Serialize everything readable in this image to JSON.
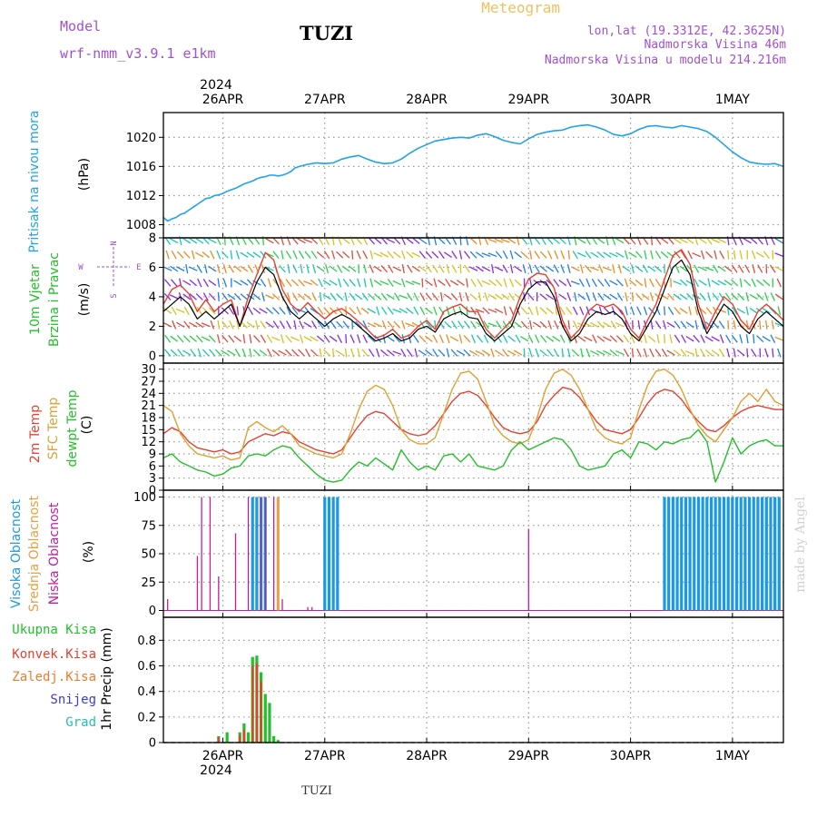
{
  "header": {
    "model_label": "Model",
    "model_name": "wrf-nmm_v3.9.1  e1km",
    "station": "TUZI",
    "chart_title": "Meteogram",
    "location_line": "lon,lat (19.3312E, 42.3625N)",
    "elevation_line": "Nadmorska Visina 46m",
    "model_elevation_line": "Nadmorska Visina u modelu 214.216m",
    "footer_station": "TUZI",
    "watermark": "made by Angel"
  },
  "colors": {
    "pressure": "#1fa3e8",
    "wind_black": "#000000",
    "wind_red": "#e8402f",
    "temp_2m": "#e8402f",
    "temp_sfc": "#e0a030",
    "temp_dew": "#22c02a",
    "cloud_high": "#1a9ae6",
    "cloud_mid": "#e8a040",
    "cloud_low": "#c01fa0",
    "precip_total": "#22c02a",
    "precip_conv": "#e8402f",
    "precip_frozen": "#f07a30",
    "precip_snow": "#3a3ae0",
    "precip_hail": "#26c0b0",
    "header_purple": "#a24fd0",
    "title_orange": "#f0c060"
  },
  "time_axis": {
    "year": "2024",
    "labels": [
      "26APR",
      "27APR",
      "28APR",
      "29APR",
      "30APR",
      "1MAY"
    ],
    "range_hours": [
      -14,
      132
    ]
  },
  "chart_data": [
    {
      "type": "line",
      "name": "pressure",
      "ylabel_lines": [
        "Pritisak na nivou mora",
        "(hPa)"
      ],
      "ylim": [
        1006.2,
        1023.4
      ],
      "yticks": [
        1008,
        1012,
        1016,
        1020
      ],
      "grid": true,
      "x": [
        -14,
        -13,
        -12,
        -11,
        -10,
        -9,
        -8,
        -7,
        -6,
        -5,
        -4,
        -3,
        -2,
        -1,
        0,
        1,
        2,
        3,
        4,
        5,
        6,
        7,
        8,
        9,
        10,
        11,
        12,
        13,
        14,
        15,
        16,
        17,
        18,
        20,
        22,
        24,
        26,
        28,
        30,
        32,
        34,
        36,
        38,
        40,
        42,
        44,
        46,
        48,
        50,
        52,
        54,
        56,
        58,
        60,
        62,
        64,
        66,
        68,
        70,
        72,
        74,
        76,
        78,
        80,
        82,
        84,
        86,
        88,
        90,
        92,
        94,
        96,
        98,
        100,
        102,
        104,
        106,
        108,
        110,
        112,
        114,
        116,
        118,
        120,
        122,
        124,
        126,
        128,
        130,
        132
      ],
      "y": [
        1009.0,
        1008.5,
        1008.8,
        1009.0,
        1009.4,
        1009.6,
        1010.0,
        1010.4,
        1010.8,
        1011.2,
        1011.6,
        1011.7,
        1012.0,
        1012.1,
        1012.3,
        1012.6,
        1012.8,
        1013.0,
        1013.3,
        1013.6,
        1013.8,
        1014.0,
        1014.3,
        1014.5,
        1014.6,
        1014.8,
        1014.8,
        1014.7,
        1014.8,
        1015.0,
        1015.3,
        1015.8,
        1016.0,
        1016.3,
        1016.5,
        1016.4,
        1016.5,
        1017.0,
        1017.3,
        1017.5,
        1017.0,
        1016.6,
        1016.4,
        1016.5,
        1017.0,
        1017.8,
        1018.5,
        1019.0,
        1019.5,
        1019.7,
        1019.9,
        1020.0,
        1019.9,
        1020.3,
        1020.5,
        1020.1,
        1019.6,
        1019.3,
        1019.1,
        1019.8,
        1020.4,
        1020.7,
        1020.9,
        1021.0,
        1021.4,
        1021.6,
        1021.7,
        1021.4,
        1021.0,
        1020.4,
        1020.2,
        1020.5,
        1021.1,
        1021.5,
        1021.6,
        1021.4,
        1021.3,
        1021.6,
        1021.4,
        1021.2,
        1020.8,
        1020.0,
        1019.0,
        1018.0,
        1017.2,
        1016.6,
        1016.4,
        1016.3,
        1016.4,
        1016.0
      ]
    },
    {
      "type": "line",
      "name": "wind",
      "ylabel_lines": [
        "10m Vjetar",
        "Brzina i Pravac",
        "(m/s)"
      ],
      "compass": {
        "north": "N",
        "south": "S",
        "west": "W",
        "east": "E"
      },
      "ylim": [
        -0.5,
        8
      ],
      "yticks": [
        0,
        2,
        4,
        6,
        8
      ],
      "grid": true,
      "x": [
        -14,
        -12,
        -10,
        -8,
        -6,
        -4,
        -2,
        0,
        2,
        4,
        6,
        8,
        10,
        12,
        14,
        16,
        18,
        20,
        22,
        24,
        26,
        28,
        30,
        32,
        34,
        36,
        38,
        40,
        42,
        44,
        46,
        48,
        50,
        52,
        54,
        56,
        58,
        60,
        62,
        64,
        66,
        68,
        70,
        72,
        74,
        76,
        78,
        80,
        82,
        84,
        86,
        88,
        90,
        92,
        94,
        96,
        98,
        100,
        102,
        104,
        106,
        108,
        110,
        112,
        114,
        116,
        118,
        120,
        122,
        124,
        126,
        128,
        130,
        132
      ],
      "y": [
        3.0,
        3.5,
        4.0,
        3.5,
        2.5,
        3.0,
        2.5,
        3.0,
        3.5,
        2.0,
        3.5,
        5.0,
        6.0,
        5.5,
        4.0,
        3.0,
        2.5,
        3.0,
        2.5,
        2.0,
        2.5,
        2.8,
        2.5,
        2.0,
        1.5,
        1.0,
        1.2,
        1.5,
        1.0,
        1.2,
        1.8,
        2.0,
        1.6,
        2.5,
        2.8,
        3.0,
        2.6,
        2.5,
        1.5,
        1.0,
        1.5,
        2.0,
        3.5,
        4.5,
        5.0,
        5.0,
        4.0,
        2.0,
        1.0,
        1.5,
        2.5,
        3.0,
        2.8,
        3.0,
        2.5,
        1.5,
        1.0,
        2.0,
        3.0,
        4.5,
        6.0,
        6.5,
        5.5,
        3.0,
        1.5,
        2.5,
        3.5,
        3.0,
        2.0,
        1.5,
        2.5,
        3.0,
        2.5,
        2.0
      ],
      "y_red": [
        3.5,
        4.5,
        4.8,
        4.2,
        3.0,
        3.8,
        3.0,
        3.5,
        3.8,
        2.0,
        4.0,
        5.5,
        7.0,
        6.5,
        4.5,
        3.5,
        3.0,
        3.6,
        3.0,
        2.5,
        3.0,
        3.2,
        2.8,
        2.3,
        1.8,
        1.2,
        1.4,
        1.8,
        1.2,
        1.4,
        2.0,
        2.4,
        1.8,
        3.0,
        3.3,
        3.5,
        3.0,
        3.0,
        1.8,
        1.2,
        1.8,
        2.4,
        4.0,
        5.2,
        5.6,
        5.5,
        4.6,
        2.4,
        1.2,
        1.8,
        3.0,
        3.5,
        3.3,
        3.5,
        3.0,
        1.8,
        1.2,
        2.4,
        3.5,
        5.2,
        6.8,
        7.2,
        6.2,
        3.5,
        1.8,
        3.0,
        4.0,
        3.5,
        2.4,
        1.8,
        3.0,
        3.5,
        3.0,
        2.4
      ]
    },
    {
      "type": "line",
      "name": "temperature",
      "ylabel_lines": [
        "2m Temp",
        "SFC Temp",
        "dewpt Temp",
        "(C)"
      ],
      "ylim": [
        0,
        31.5
      ],
      "yticks": [
        0,
        3,
        6,
        9,
        12,
        15,
        18,
        21,
        24,
        27,
        30
      ],
      "grid": true,
      "x": [
        -14,
        -12,
        -10,
        -8,
        -6,
        -4,
        -2,
        0,
        2,
        4,
        6,
        8,
        10,
        12,
        14,
        16,
        18,
        20,
        22,
        24,
        26,
        28,
        30,
        32,
        34,
        36,
        38,
        40,
        42,
        44,
        46,
        48,
        50,
        52,
        54,
        56,
        58,
        60,
        62,
        64,
        66,
        68,
        70,
        72,
        74,
        76,
        78,
        80,
        82,
        84,
        86,
        88,
        90,
        92,
        94,
        96,
        98,
        100,
        102,
        104,
        106,
        108,
        110,
        112,
        114,
        116,
        118,
        120,
        122,
        124,
        126,
        128,
        130,
        132
      ],
      "series": [
        {
          "name": "2m Temp",
          "values": [
            14.0,
            15.5,
            14.5,
            12.0,
            10.5,
            10.0,
            9.5,
            10.0,
            9.0,
            9.5,
            12.0,
            13.0,
            14.0,
            13.5,
            14.5,
            14.0,
            12.0,
            11.0,
            10.0,
            9.5,
            9.0,
            10.0,
            13.0,
            16.0,
            18.5,
            19.5,
            19.0,
            17.0,
            15.0,
            14.0,
            13.5,
            14.0,
            16.0,
            19.0,
            22.0,
            24.0,
            24.5,
            23.5,
            21.0,
            18.0,
            15.5,
            14.5,
            14.0,
            14.5,
            17.0,
            21.0,
            23.5,
            25.5,
            25.0,
            23.0,
            20.0,
            17.0,
            15.0,
            14.5,
            14.0,
            15.0,
            18.0,
            21.5,
            24.0,
            25.0,
            24.5,
            22.5,
            19.5,
            17.0,
            15.0,
            14.5,
            16.0,
            18.0,
            19.5,
            20.5,
            21.0,
            20.5,
            20.0,
            20.0
          ]
        },
        {
          "name": "SFC Temp",
          "values": [
            21.0,
            19.5,
            14.0,
            11.0,
            9.0,
            8.5,
            8.0,
            8.5,
            7.5,
            8.0,
            15.5,
            17.0,
            15.5,
            14.5,
            16.0,
            14.0,
            11.0,
            10.0,
            9.0,
            8.5,
            8.0,
            9.0,
            14.0,
            20.0,
            24.5,
            26.0,
            25.0,
            21.0,
            15.0,
            12.5,
            11.5,
            11.5,
            13.0,
            19.0,
            25.0,
            29.0,
            29.5,
            27.5,
            22.0,
            16.0,
            13.5,
            12.0,
            11.5,
            12.5,
            18.0,
            25.0,
            29.0,
            30.0,
            28.5,
            25.0,
            20.0,
            15.0,
            13.0,
            12.0,
            11.5,
            13.0,
            20.0,
            26.0,
            29.5,
            30.0,
            28.5,
            25.0,
            20.0,
            16.0,
            13.5,
            12.0,
            15.0,
            18.0,
            22.0,
            24.0,
            22.0,
            25.0,
            22.0,
            21.0
          ]
        },
        {
          "name": "dewpt Temp",
          "values": [
            8.0,
            9.0,
            7.0,
            6.0,
            5.0,
            4.5,
            3.5,
            4.0,
            5.5,
            6.0,
            8.5,
            9.0,
            8.5,
            10.0,
            11.0,
            10.5,
            8.0,
            6.0,
            4.0,
            2.5,
            2.0,
            2.5,
            5.0,
            7.0,
            6.0,
            8.0,
            6.5,
            5.0,
            10.0,
            7.0,
            5.0,
            6.0,
            5.0,
            8.5,
            9.0,
            7.0,
            9.0,
            6.0,
            5.5,
            5.0,
            6.0,
            10.0,
            12.0,
            10.0,
            11.0,
            12.0,
            13.0,
            12.5,
            10.0,
            6.0,
            5.0,
            5.5,
            6.0,
            9.0,
            10.0,
            8.0,
            12.0,
            11.5,
            10.0,
            12.0,
            11.5,
            12.5,
            13.0,
            15.0,
            12.0,
            2.0,
            7.0,
            13.0,
            9.0,
            11.0,
            12.0,
            12.5,
            11.0,
            11.0
          ]
        }
      ]
    },
    {
      "type": "bar",
      "name": "cloud_cover",
      "ylabel_lines": [
        "Visoka Oblacnost",
        "Srednja Oblacnost",
        "Niska Oblacnost",
        "(%)"
      ],
      "ylim": [
        -6,
        106
      ],
      "yticks": [
        0,
        25,
        50,
        75,
        100
      ],
      "grid": true,
      "series": [
        {
          "name": "Niska Oblacnost",
          "x": [
            -13,
            -6,
            -5,
            -3,
            -1,
            3,
            6,
            9,
            10,
            12,
            14,
            20,
            21,
            72
          ],
          "values": [
            10,
            48,
            100,
            100,
            30,
            68,
            100,
            100,
            100,
            100,
            10,
            3,
            3,
            72
          ]
        },
        {
          "name": "Srednja Oblacnost",
          "x": [
            8,
            13,
            120,
            121,
            123,
            124,
            126,
            127,
            128,
            129,
            130,
            131
          ],
          "values": [
            100,
            100,
            100,
            100,
            100,
            100,
            100,
            100,
            100,
            100,
            100,
            100
          ]
        },
        {
          "name": "Visoka Oblacnost",
          "x": [
            7,
            8,
            9,
            10,
            24,
            25,
            26,
            27,
            104,
            105,
            106,
            107,
            108,
            109,
            110,
            111,
            112,
            113,
            114,
            115,
            116,
            117,
            118,
            119,
            120,
            121,
            122,
            123,
            124,
            125,
            126,
            127,
            128,
            129,
            130,
            131
          ],
          "values": [
            100,
            100,
            100,
            100,
            100,
            100,
            100,
            100,
            100,
            100,
            100,
            100,
            100,
            100,
            100,
            100,
            100,
            100,
            100,
            100,
            100,
            100,
            100,
            100,
            100,
            100,
            100,
            100,
            100,
            100,
            100,
            100,
            100,
            100,
            100,
            100
          ]
        }
      ]
    },
    {
      "type": "bar",
      "name": "precipitation",
      "ylabel_lines": [
        "1hr Precip (mm)"
      ],
      "legend": [
        "Ukupna Kisa",
        "Konvek.Kisa",
        "Zaledj.Kisa",
        "Snijeg",
        "Grad"
      ],
      "ylim": [
        0,
        0.98
      ],
      "yticks": [
        0,
        0.2,
        0.4,
        0.6,
        0.8
      ],
      "grid": true,
      "series": [
        {
          "name": "Ukupna Kisa",
          "x": [
            -1,
            1,
            4,
            5,
            6,
            7,
            8,
            9,
            10,
            11,
            12,
            13
          ],
          "values": [
            0.05,
            0.08,
            0.08,
            0.15,
            0.08,
            0.67,
            0.68,
            0.55,
            0.38,
            0.31,
            0.05,
            0.02
          ]
        },
        {
          "name": "Konvek.Kisa",
          "x": [
            -1,
            4,
            5,
            7,
            8,
            9
          ],
          "values": [
            0.04,
            0.06,
            0.1,
            0.6,
            0.62,
            0.48
          ]
        }
      ]
    }
  ]
}
